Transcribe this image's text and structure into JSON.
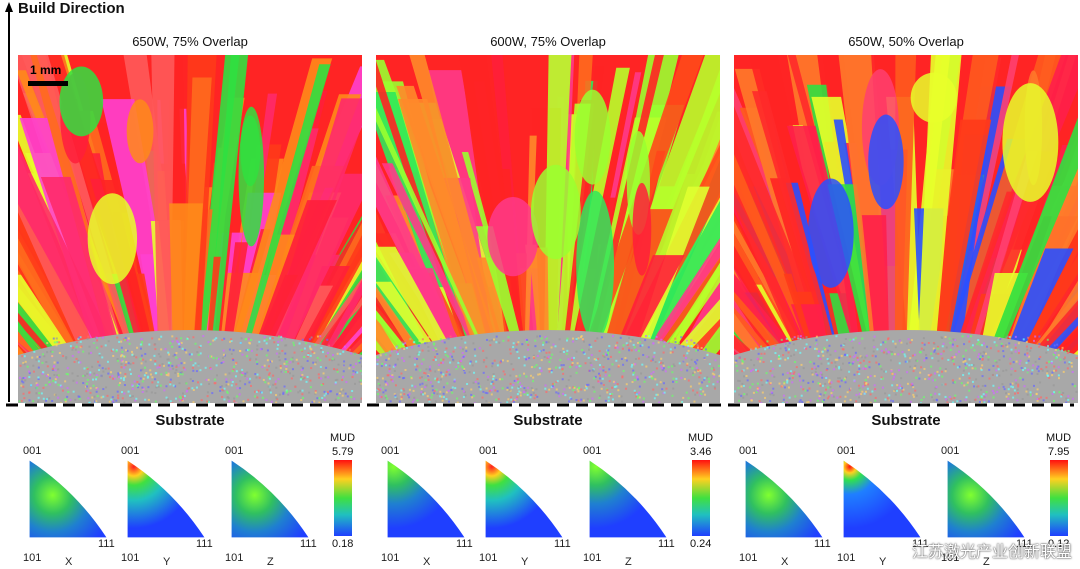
{
  "build_direction": "Build Direction",
  "scale_bar": "1 mm",
  "substrate_label": "Substrate",
  "panels": [
    {
      "title": "650W, 75% Overlap",
      "mud_label": "MUD",
      "mud_max": "5.79",
      "mud_min": "0.18"
    },
    {
      "title": "600W, 75% Overlap",
      "mud_label": "MUD",
      "mud_max": "3.46",
      "mud_min": "0.24"
    },
    {
      "title": "650W, 50% Overlap",
      "mud_label": "MUD",
      "mud_max": "7.95",
      "mud_min": "0.12"
    }
  ],
  "ipf_corner_labels": {
    "top": "001",
    "left": "101",
    "right": "111"
  },
  "ipf_axes": [
    "X",
    "Y",
    "Z"
  ],
  "colors": {
    "red": "#ff2020",
    "orange": "#ff8a1a",
    "magenta": "#ff3bd0",
    "green": "#22e33a",
    "yellow": "#d9ff2a",
    "blue": "#1f4fff",
    "substrate": "#a8a8a8"
  },
  "watermark": "江苏激光产业创新联盟"
}
